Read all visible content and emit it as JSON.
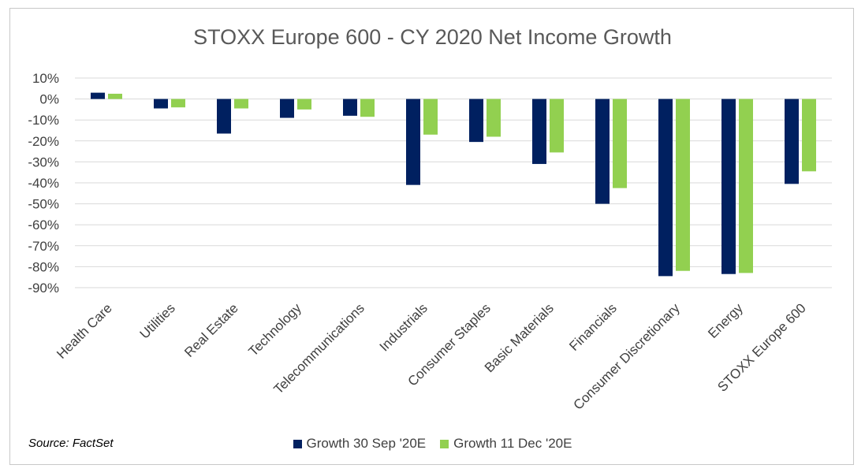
{
  "chart_data": {
    "type": "bar",
    "title": "STOXX Europe 600 - CY 2020 Net Income Growth",
    "categories": [
      "Health Care",
      "Utilities",
      "Real Estate",
      "Technology",
      "Telecommunications",
      "Industrials",
      "Consumer Staples",
      "Basic Materials",
      "Financials",
      "Consumer Discretionary",
      "Energy",
      "STOXX Europe 600"
    ],
    "series": [
      {
        "name": "Growth  30 Sep '20E",
        "color": "#002060",
        "values": [
          3,
          -4.5,
          -16.5,
          -9,
          -8,
          -41,
          -20.5,
          -31,
          -50,
          -84.5,
          -83.5,
          -40.5
        ]
      },
      {
        "name": "Growth 11 Dec '20E",
        "color": "#92D050",
        "values": [
          2.5,
          -4,
          -4.5,
          -5,
          -8.5,
          -17,
          -18,
          -25.5,
          -42.5,
          -82,
          -83,
          -34.5
        ]
      }
    ],
    "yticks": [
      "10%",
      "0%",
      "-10%",
      "-20%",
      "-30%",
      "-40%",
      "-50%",
      "-60%",
      "-70%",
      "-80%",
      "-90%"
    ],
    "ylim": [
      -90,
      10
    ],
    "grid": true,
    "legend_position": "bottom"
  },
  "source": "Source: FactSet"
}
